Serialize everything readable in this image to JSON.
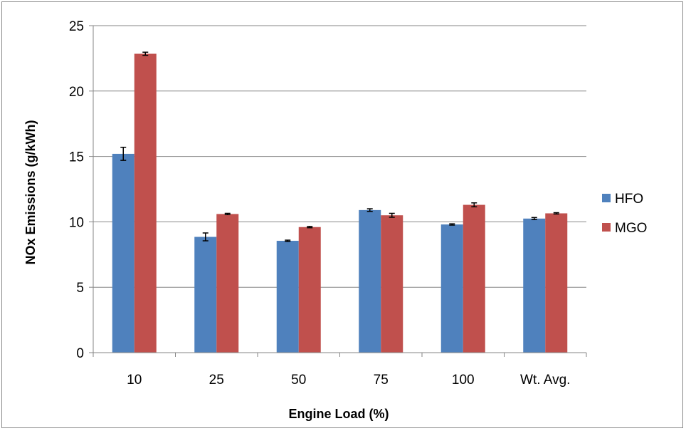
{
  "chart_data": {
    "type": "bar",
    "xlabel": "Engine Load (%)",
    "ylabel": "NOx Emissions (g/kWh)",
    "categories": [
      "10",
      "25",
      "50",
      "75",
      "100",
      "Wt. Avg."
    ],
    "ylim": [
      0,
      25
    ],
    "yticks": [
      "0",
      "5",
      "10",
      "15",
      "20",
      "25"
    ],
    "grid": true,
    "legend_position": "right",
    "series": [
      {
        "name": "HFO",
        "color": "#4F81BD",
        "values": [
          15.2,
          8.85,
          8.55,
          10.9,
          9.8,
          10.25
        ],
        "errors": [
          0.5,
          0.3,
          0.05,
          0.1,
          0.05,
          0.08
        ]
      },
      {
        "name": "MGO",
        "color": "#C0504D",
        "values": [
          22.85,
          10.6,
          9.6,
          10.5,
          11.3,
          10.65
        ],
        "errors": [
          0.12,
          0.05,
          0.05,
          0.15,
          0.15,
          0.05
        ]
      }
    ]
  }
}
